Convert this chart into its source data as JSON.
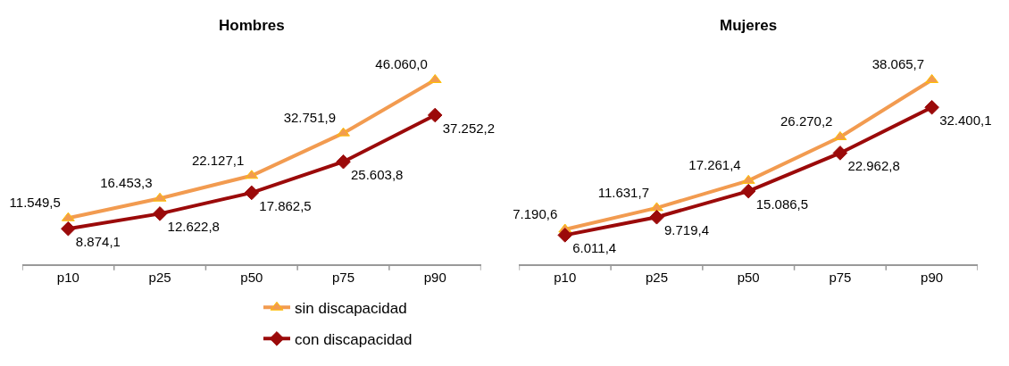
{
  "chart_data": [
    {
      "type": "line",
      "title": "Hombres",
      "categories": [
        "p10",
        "p25",
        "p50",
        "p75",
        "p90"
      ],
      "tick_labels": "x",
      "legend": "bottom",
      "series": [
        {
          "name": "sin discapacidad",
          "color": "#f29b50",
          "marker": "triangle",
          "values": [
            11549.5,
            16453.3,
            22127.1,
            32751.9,
            46060.0
          ],
          "value_labels": [
            "11.549,5",
            "16.453,3",
            "22.127,1",
            "32.751,9",
            "46.060,0"
          ]
        },
        {
          "name": "con discapacidad",
          "color": "#9b0a0a",
          "marker": "diamond",
          "values": [
            8874.1,
            12622.8,
            17862.5,
            25603.8,
            37252.2
          ],
          "value_labels": [
            "8.874,1",
            "12.622,8",
            "17.862,5",
            "25.603,8",
            "37.252,2"
          ]
        }
      ]
    },
    {
      "type": "line",
      "title": "Mujeres",
      "categories": [
        "p10",
        "p25",
        "p50",
        "p75",
        "p90"
      ],
      "tick_labels": "x",
      "series": [
        {
          "color": "#f29b50",
          "marker": "triangle",
          "values": [
            7190.6,
            11631.7,
            17261.4,
            26270.2,
            38065.7
          ],
          "value_labels": [
            "7.190,6",
            "11.631,7",
            "17.261,4",
            "26.270,2",
            "38.065,7"
          ]
        },
        {
          "color": "#9b0a0a",
          "marker": "diamond",
          "values": [
            6011.4,
            9719.4,
            15086.5,
            22962.8,
            32400.1
          ],
          "value_labels": [
            "6.011,4",
            "9.719,4",
            "15.086,5",
            "22.962,8",
            "32.400,1"
          ]
        }
      ]
    }
  ]
}
